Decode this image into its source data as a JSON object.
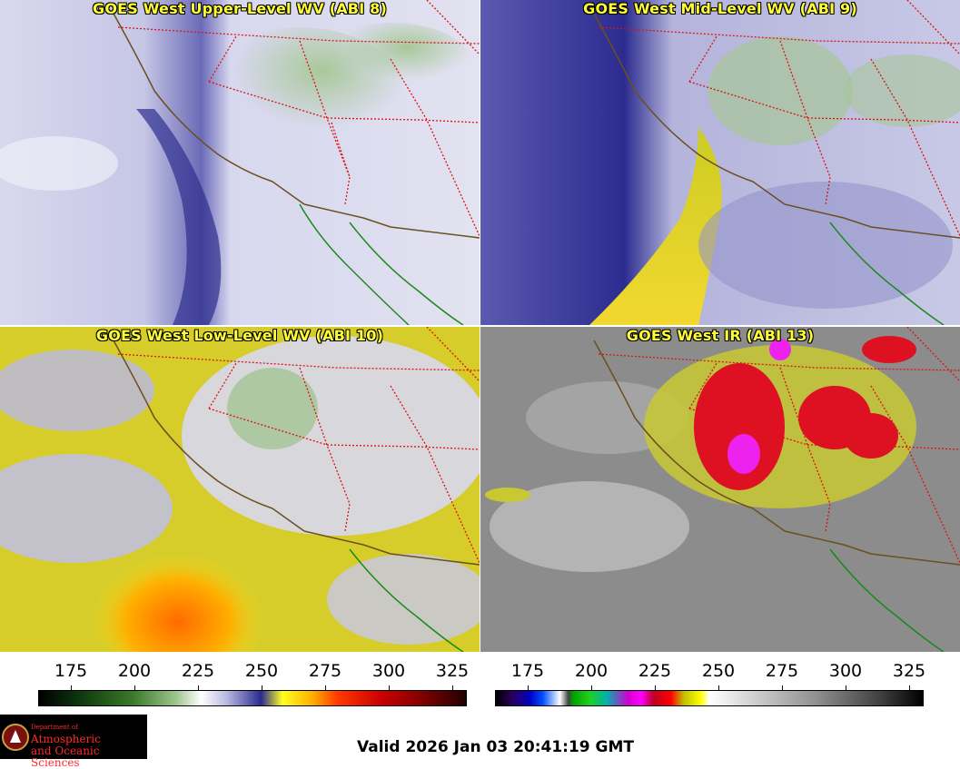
{
  "panels": [
    {
      "title": "GOES West Upper-Level WV (ABI 8)"
    },
    {
      "title": "GOES West Mid-Level WV (ABI 9)"
    },
    {
      "title": "GOES West Low-Level WV (ABI 10)"
    },
    {
      "title": "GOES West IR (ABI 13)"
    }
  ],
  "colorbar_left": {
    "ticks": [
      "175",
      "200",
      "225",
      "250",
      "275",
      "300",
      "325"
    ]
  },
  "colorbar_right": {
    "ticks": [
      "175",
      "200",
      "225",
      "250",
      "275",
      "300",
      "325"
    ]
  },
  "logo": {
    "line1": "Department of",
    "line2": "Atmospheric",
    "line3": "and Oceanic Sciences"
  },
  "valid_text": "Valid 2026 Jan 03 20:41:19 GMT"
}
